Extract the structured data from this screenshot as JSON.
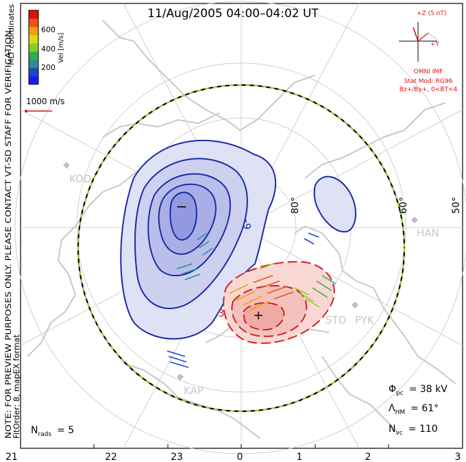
{
  "title": "11/Aug/2005 04:00–04:02 UT",
  "colorbar": {
    "ticks": [
      "600",
      "400",
      "200"
    ],
    "label": "Vel [m/s]",
    "colors": [
      "#1a1aff",
      "#2244cc",
      "#2a8f8f",
      "#33aa55",
      "#88cc22",
      "#d8d820",
      "#f0a010",
      "#ee5510",
      "#e01010"
    ]
  },
  "coord_label": "MLT coordinates",
  "scale_arrow_label": "1000 m/s",
  "imf": {
    "bz_label": "+Z (5 nT)",
    "by_label": "+Y",
    "source": "OMNI IMF",
    "model_line1": "Stat Mod: RG96",
    "model_line2": "Bz+/By+, 0<BT<4",
    "color": "#dd1111"
  },
  "lat_labels": [
    "80°",
    "60°",
    "50°"
  ],
  "stations": [
    "KOD",
    "HAN",
    "STO",
    "PYK",
    "KAP"
  ],
  "contour_labels": [
    "-9",
    "3"
  ],
  "markers": {
    "min": "−",
    "max": "+"
  },
  "stats": {
    "phi_label": "Φ",
    "phi_sub": "pc",
    "phi_value": "= 38 kV",
    "lambda_label": "Λ",
    "lambda_sub": "HM",
    "lambda_value": "= 61°",
    "nvc_label": "N",
    "nvc_sub": "vc",
    "nvc_value": "= 110",
    "nrads_label": "N",
    "nrads_sub": "rads",
    "nrads_value": "= 5"
  },
  "note_line1": "NOTE: FOR PREVIEW PURPOSES ONLY. PLEASE CONTACT VT-SD STAFF FOR VERIFICATION.",
  "note_line2": "FitOrder: 8, mapEX format",
  "x_axis_ticks": [
    "21",
    "22",
    "23",
    "0",
    "1",
    "2",
    "3"
  ],
  "colors": {
    "negative_contour": "#1a2aa8",
    "negative_fill": "#cfd2ef",
    "positive_contour": "#d42020",
    "positive_fill": "#f6c9c4",
    "coast": "#c8c8c8",
    "grid": "#cfcfcf"
  }
}
